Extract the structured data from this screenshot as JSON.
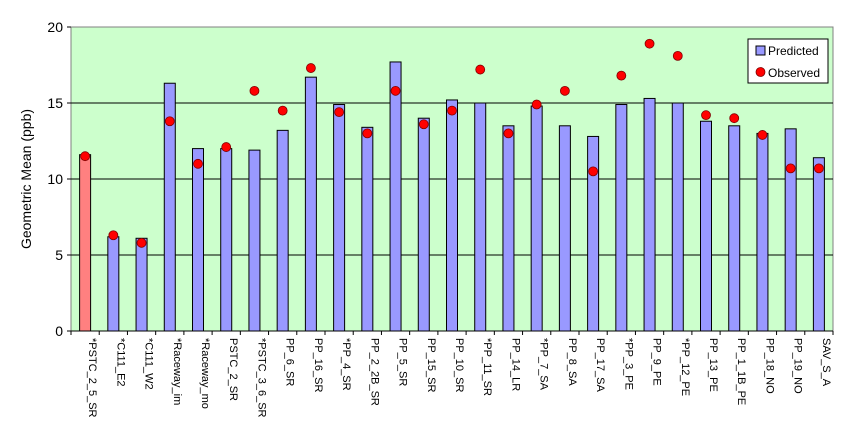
{
  "chart_data": {
    "type": "bar",
    "ylabel": "Geometric Mean (ppb)",
    "xlabel": "",
    "title": "",
    "ylim": [
      0,
      20
    ],
    "yticks": [
      0,
      5,
      10,
      15,
      20
    ],
    "grid": "horizontal",
    "legend_position": "top-right",
    "categories": [
      "*PSTC_2_5_SR",
      "*C111_E2",
      "*C111_W2",
      "*Raceway_im",
      "*Raceway_mo",
      "PSTC_2_SR",
      "*PSTC_3_6_SR",
      "PP_6_SR",
      "PP_16_SR",
      "*PP_4_SR",
      "PP_2_2B_SR",
      "PP_5_SR",
      "PP_15_SR",
      "PP_10_SR",
      "*PP_11_SR",
      "PP_14_LR",
      "*PP_7_SA",
      "PP_8_SA",
      "PP_17_SA",
      "*PP_3_PE",
      "PP_9_PE",
      "*PP_12_PE",
      "PP_13_PE",
      "PP_1_1B_PE",
      "PP_18_NO",
      "PP_19_NO",
      "SAV_S_A"
    ],
    "series": [
      {
        "name": "Predicted",
        "marker": "bar",
        "color": "#9999FF",
        "highlight_color": "#FF8080",
        "highlight_index": 0,
        "values": [
          11.6,
          6.2,
          6.1,
          16.3,
          12.0,
          12.0,
          11.9,
          13.2,
          16.7,
          14.9,
          13.4,
          17.7,
          14.0,
          15.2,
          15.0,
          13.5,
          14.8,
          13.5,
          12.8,
          14.9,
          15.3,
          15.0,
          13.8,
          13.5,
          13.0,
          13.3,
          11.4
        ]
      },
      {
        "name": "Observed",
        "marker": "circle",
        "color": "#FF0000",
        "values": [
          11.5,
          6.3,
          5.8,
          13.8,
          11.0,
          12.1,
          15.8,
          14.5,
          17.3,
          14.4,
          13.0,
          15.8,
          13.6,
          14.5,
          17.2,
          13.0,
          14.9,
          15.8,
          10.5,
          16.8,
          18.9,
          18.1,
          14.2,
          14.0,
          12.9,
          10.7,
          10.7
        ]
      }
    ],
    "colors": {
      "plot_bg": "#CCFFCC",
      "grid": "#000000",
      "bar_edge": "#000000"
    }
  }
}
